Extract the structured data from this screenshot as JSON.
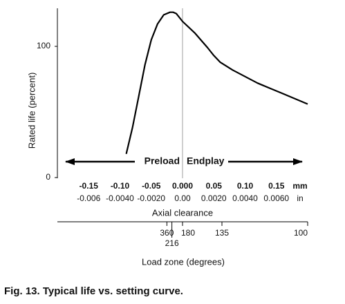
{
  "chart_data": {
    "type": "line",
    "title": "Fig. 13. Typical life vs. setting curve.",
    "y_label": "Rated life (percent)",
    "x_label": "Axial clearance",
    "x_unit": "mm",
    "x2_unit": "in",
    "x": [
      -0.09,
      -0.08,
      -0.07,
      -0.06,
      -0.05,
      -0.04,
      -0.03,
      -0.02,
      -0.015,
      -0.01,
      0,
      0.02,
      0.04,
      0.05,
      0.06,
      0.08,
      0.1,
      0.12,
      0.14,
      0.16,
      0.18,
      0.2
    ],
    "values": [
      18,
      38,
      62,
      86,
      105,
      117,
      124,
      126,
      126,
      125,
      119,
      110,
      99,
      93,
      88,
      82,
      77,
      72,
      68,
      64,
      60,
      56
    ],
    "color": "#000000",
    "xlim": [
      -0.2,
      0.2
    ],
    "ylim": [
      0,
      129
    ],
    "yticks": [
      0,
      100
    ],
    "xticks": [
      -0.15,
      {
        "value": -0.1,
        "label": "-0.10"
      },
      -0.05,
      {
        "value": 0,
        "label": "0.000"
      },
      0.05,
      {
        "value": 0.1,
        "label": "0.10"
      },
      0.15
    ],
    "x2_labels": [
      "-0.006",
      "-0.0040",
      "-0.0020",
      "0.00",
      "0.0020",
      "0.0040",
      "0.0060"
    ],
    "annotations": {
      "left": "Preload",
      "right": "Endplay"
    },
    "load_zone_label": "Load zone (degrees)",
    "load_zone_ticks": [
      {
        "value": 360,
        "clearance": -0.025
      },
      {
        "value": 216,
        "clearance": -0.017
      },
      {
        "value": 180,
        "clearance": 0
      },
      {
        "value": 135,
        "clearance": 0.063
      },
      {
        "value": 100,
        "clearance": 0.2
      }
    ]
  }
}
